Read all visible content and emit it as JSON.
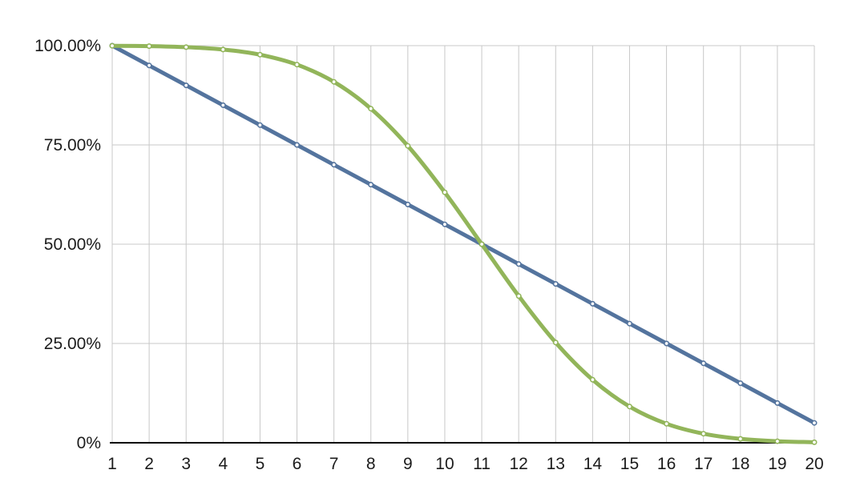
{
  "chart_data": {
    "type": "line",
    "x": [
      1,
      2,
      3,
      4,
      5,
      6,
      7,
      8,
      9,
      10,
      11,
      12,
      13,
      14,
      15,
      16,
      17,
      18,
      19,
      20
    ],
    "series": [
      {
        "name": "blue-line",
        "color": "#54749e",
        "marker_fill": "#ffffff",
        "values": [
          100,
          95,
          90,
          85,
          80,
          75,
          70,
          65,
          60,
          55,
          50,
          45,
          40,
          35,
          30,
          25,
          20,
          15,
          10,
          5
        ]
      },
      {
        "name": "green-line",
        "color": "#92b55a",
        "marker_fill": "#ffffff",
        "values": [
          99.96,
          99.87,
          99.62,
          99.02,
          97.72,
          95.22,
          90.88,
          84.13,
          74.75,
          63.06,
          50,
          36.94,
          25.25,
          15.87,
          9.12,
          4.78,
          2.28,
          0.98,
          0.38,
          0.13
        ]
      }
    ],
    "ylim": [
      0,
      100
    ],
    "yticks": [
      {
        "value": 0,
        "label": "0%"
      },
      {
        "value": 25,
        "label": "25.00%"
      },
      {
        "value": 50,
        "label": "50.00%"
      },
      {
        "value": 75,
        "label": "75.00%"
      },
      {
        "value": 100,
        "label": "100.00%"
      }
    ],
    "xtick_labels": [
      "1",
      "2",
      "3",
      "4",
      "5",
      "6",
      "7",
      "8",
      "9",
      "10",
      "11",
      "12",
      "13",
      "14",
      "15",
      "16",
      "17",
      "18",
      "19",
      "20"
    ],
    "grid": true,
    "grid_color": "#c8c8c8",
    "axis_color": "#000000",
    "background": "#ffffff",
    "legend": "none"
  }
}
